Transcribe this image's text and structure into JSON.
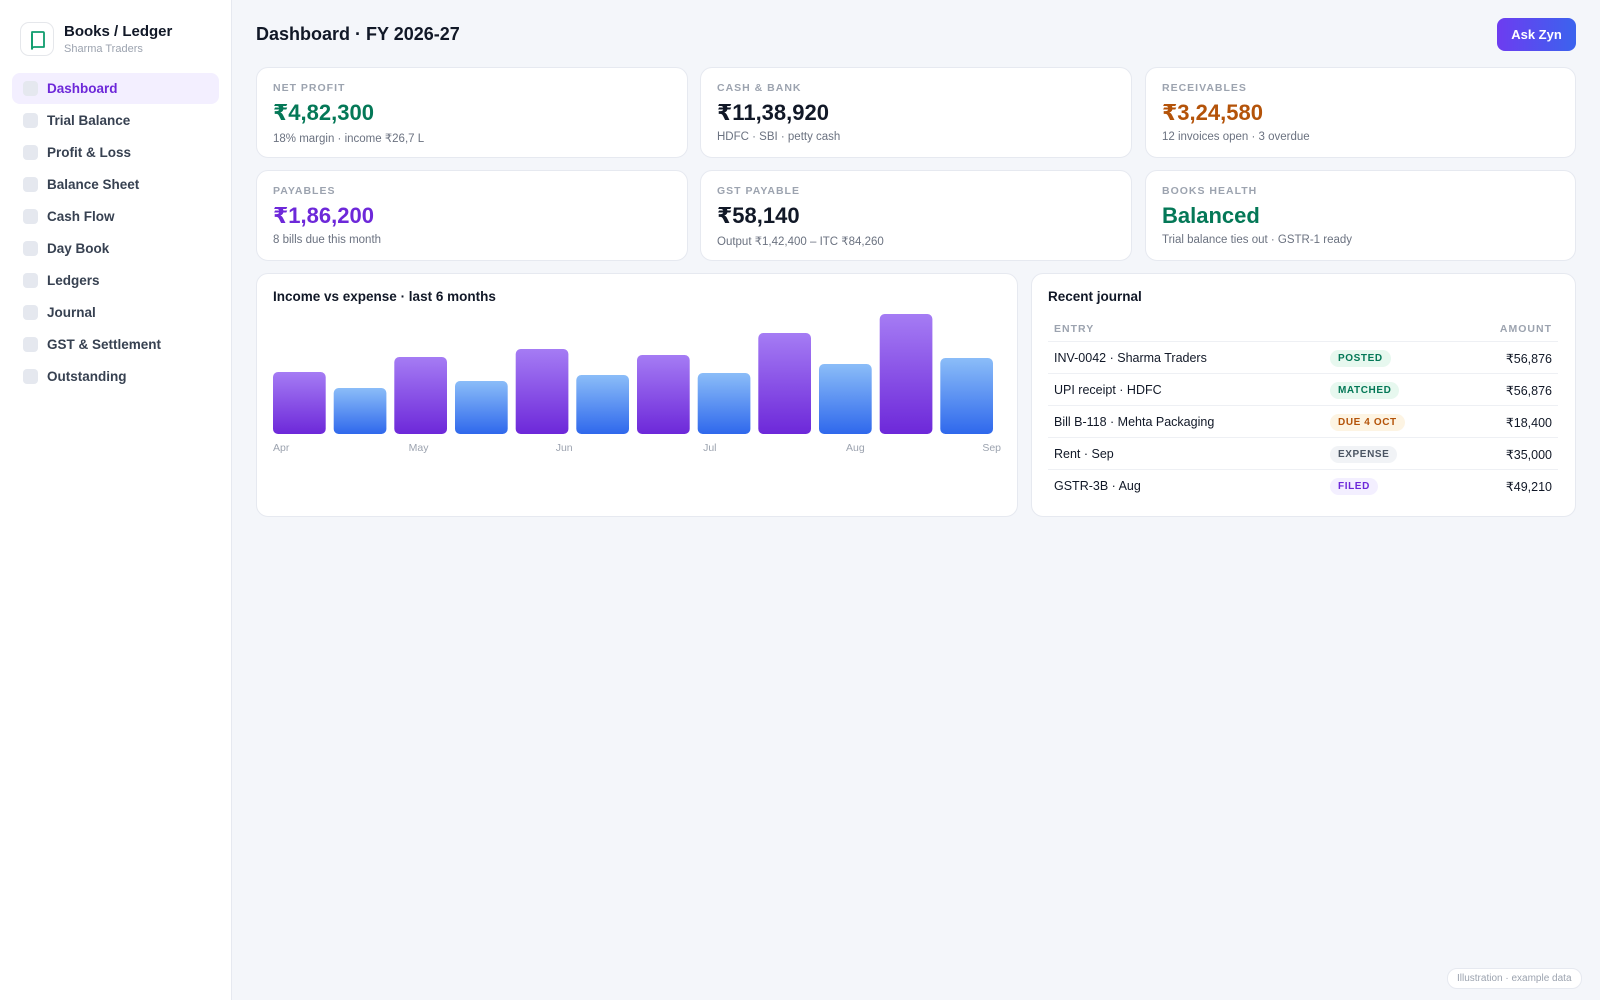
{
  "brand": {
    "title": "Books / Ledger",
    "subtitle": "Sharma Traders",
    "icon": "book-icon"
  },
  "nav": {
    "items": [
      {
        "label": "Dashboard",
        "active": true
      },
      {
        "label": "Trial Balance"
      },
      {
        "label": "Profit & Loss"
      },
      {
        "label": "Balance Sheet"
      },
      {
        "label": "Cash Flow"
      },
      {
        "label": "Day Book"
      },
      {
        "label": "Ledgers"
      },
      {
        "label": "Journal"
      },
      {
        "label": "GST & Settlement"
      },
      {
        "label": "Outstanding"
      }
    ]
  },
  "header": {
    "title": "Dashboard · FY 2026-27",
    "ask_label": "Ask Zyn"
  },
  "kpis": [
    {
      "label": "NET PROFIT",
      "value": "₹4,82,300",
      "sub": "18% margin · income ₹26,7 L",
      "color": "#047857"
    },
    {
      "label": "CASH & BANK",
      "value": "₹11,38,920",
      "sub": "HDFC · SBI · petty cash",
      "color": "#111827"
    },
    {
      "label": "RECEIVABLES",
      "value": "₹3,24,580",
      "sub": "12 invoices open · 3 overdue",
      "color": "#b45309"
    },
    {
      "label": "PAYABLES",
      "value": "₹1,86,200",
      "sub": "8 bills due this month",
      "color": "#6d28d9"
    },
    {
      "label": "GST PAYABLE",
      "value": "₹58,140",
      "sub": "Output ₹1,42,400 – ITC ₹84,260",
      "color": "#111827"
    },
    {
      "label": "BOOKS HEALTH",
      "value": "Balanced",
      "sub": "Trial balance ties out · GSTR-1 ready",
      "color": "#047857"
    }
  ],
  "chart": {
    "title": "Income vs expense · last 6 months"
  },
  "chart_data": {
    "type": "bar",
    "categories": [
      "Apr",
      "May",
      "Jun",
      "Jul",
      "Aug",
      "Sep"
    ],
    "series": [
      {
        "values": [
          62,
          77,
          85,
          79,
          101,
          120
        ],
        "color_top": "#a57cf4",
        "color_bottom": "#6d28d9"
      },
      {
        "values": [
          46,
          53,
          59,
          61,
          70,
          76
        ],
        "color_top": "#8bbdf8",
        "color_bottom": "#2f68ec"
      }
    ],
    "ylim": [
      0,
      120
    ],
    "grid": false,
    "legend": "none"
  },
  "journal": {
    "title": "Recent journal",
    "col_entry": "ENTRY",
    "col_amount": "AMOUNT",
    "rows": [
      {
        "entry": "INV-0042 · Sharma Traders",
        "status": "POSTED",
        "amount": "₹56,876",
        "badge_bg": "#e7f8ef",
        "badge_fg": "#047857"
      },
      {
        "entry": "UPI receipt · HDFC",
        "status": "MATCHED",
        "amount": "₹56,876",
        "badge_bg": "#e7f8ef",
        "badge_fg": "#047857"
      },
      {
        "entry": "Bill B-118 · Mehta Packaging",
        "status": "DUE 4 OCT",
        "amount": "₹18,400",
        "badge_bg": "#fdf4e3",
        "badge_fg": "#b45309"
      },
      {
        "entry": "Rent · Sep",
        "status": "EXPENSE",
        "amount": "₹35,000",
        "badge_bg": "#f1f3f6",
        "badge_fg": "#4b5563"
      },
      {
        "entry": "GSTR-3B · Aug",
        "status": "FILED",
        "amount": "₹49,210",
        "badge_bg": "#f3efff",
        "badge_fg": "#6d28d9"
      }
    ]
  },
  "footnote": "Illustration · example data"
}
